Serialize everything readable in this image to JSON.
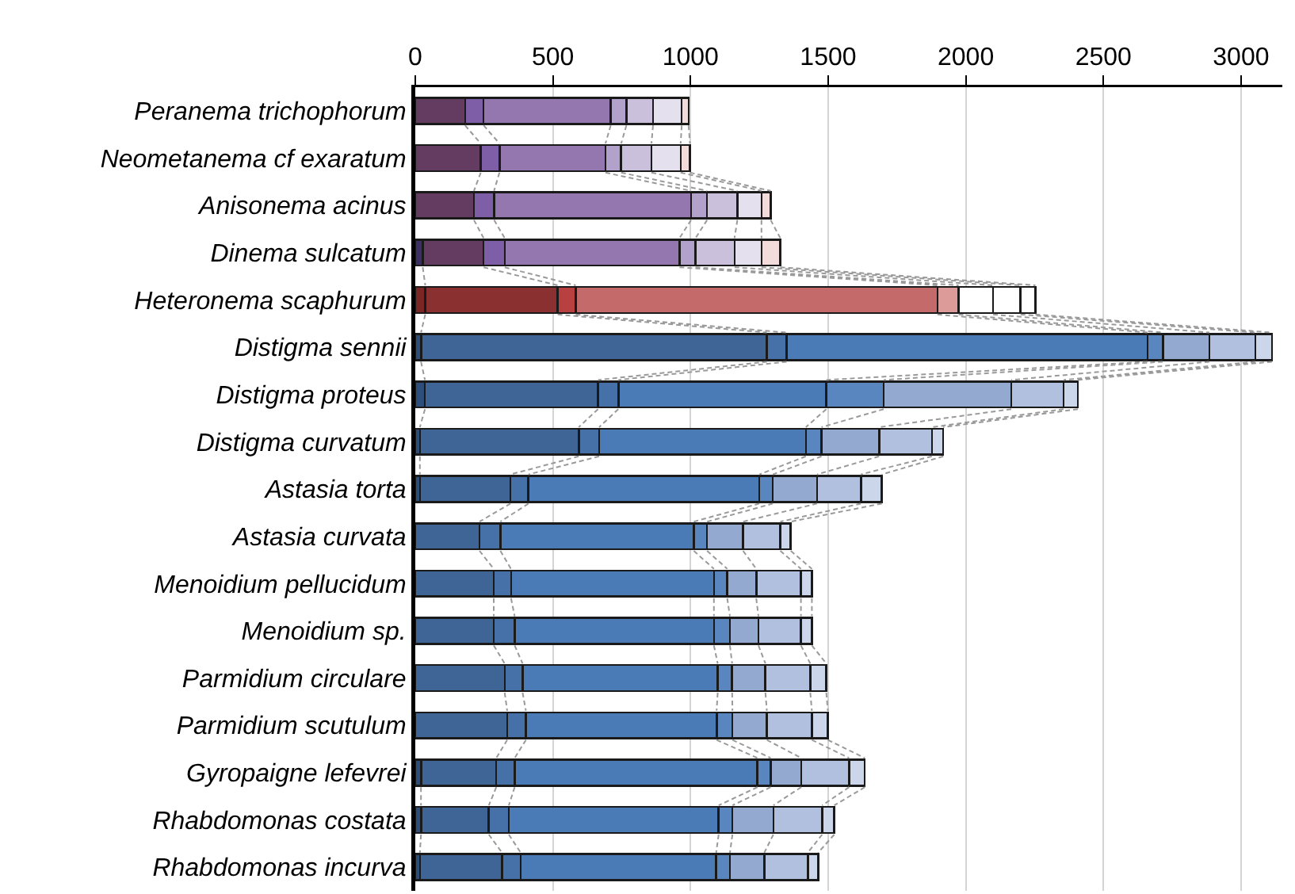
{
  "chart_data": {
    "type": "bar",
    "orientation": "horizontal",
    "stacked": true,
    "grid": "x",
    "categories": [
      "Peranema trichophorum",
      "Neometanema cf exaratum",
      "Anisonema acinus",
      "Dinema sulcatum",
      "Heteronema scaphurum",
      "Distigma sennii",
      "Distigma proteus",
      "Distigma curvatum",
      "Astasia torta",
      "Astasia curvata",
      "Menoidium pellucidum",
      "Menoidium sp.",
      "Parmidium circulare",
      "Parmidium scutulum",
      "Gyropaigne lefevrei",
      "Rhabdomonas costata",
      "Rhabdomonas incurva"
    ],
    "xlim": [
      0,
      3150
    ],
    "xticks": [
      0,
      500,
      1000,
      1500,
      2000,
      2500,
      3000
    ],
    "series": [
      {
        "values": [
          0,
          0,
          0,
          27,
          36,
          21,
          35,
          17,
          17,
          0,
          0,
          0,
          0,
          0,
          21,
          21,
          17
        ],
        "colors": [
          "#3b2f63",
          "#3b2f63",
          "#3b2f63",
          "#3b2f63",
          "#7b2525",
          "#2d4d7a",
          "#2d4d7a",
          "#2d4d7a",
          "#2d4d7a",
          "#2d4d7a",
          "#2d4d7a",
          "#2d4d7a",
          "#2d4d7a",
          "#2d4d7a",
          "#2d4d7a",
          "#2d4d7a",
          "#2d4d7a"
        ]
      },
      {
        "values": [
          181,
          238,
          213,
          221,
          481,
          1256,
          629,
          577,
          329,
          233,
          285,
          285,
          325,
          334,
          273,
          246,
          298
        ],
        "colors": [
          "#643c62",
          "#643c62",
          "#643c62",
          "#643c62",
          "#8b3030",
          "#3f6596",
          "#3f6596",
          "#3f6596",
          "#3f6596",
          "#3f6596",
          "#3f6596",
          "#3f6596",
          "#3f6596",
          "#3f6596",
          "#3f6596",
          "#3f6596",
          "#3f6596"
        ]
      },
      {
        "values": [
          67,
          68,
          73,
          77,
          66,
          72,
          74,
          74,
          65,
          76,
          63,
          76,
          65,
          68,
          67,
          73,
          68
        ],
        "colors": [
          "#7f5ea8",
          "#7f5ea8",
          "#7f5ea8",
          "#7f5ea8",
          "#b84040",
          "#4670a8",
          "#4670a8",
          "#4670a8",
          "#4670a8",
          "#4670a8",
          "#4670a8",
          "#4670a8",
          "#4670a8",
          "#4670a8",
          "#4670a8",
          "#4670a8",
          "#4670a8"
        ]
      },
      {
        "values": [
          462,
          385,
          716,
          635,
          1314,
          1311,
          755,
          751,
          839,
          703,
          737,
          724,
          709,
          693,
          882,
          762,
          710
        ],
        "colors": [
          "#9577b0",
          "#9577b0",
          "#9577b0",
          "#9577b0",
          "#c46a6a",
          "#4a7bb7",
          "#4a7bb7",
          "#4a7bb7",
          "#4a7bb7",
          "#4a7bb7",
          "#4a7bb7",
          "#4a7bb7",
          "#4a7bb7",
          "#4a7bb7",
          "#4a7bb7",
          "#4a7bb7",
          "#4a7bb7"
        ]
      },
      {
        "values": [
          57,
          57,
          58,
          58,
          77,
          56,
          209,
          57,
          49,
          48,
          48,
          58,
          52,
          57,
          48,
          50,
          50
        ],
        "colors": [
          "#b2a2cb",
          "#b2a2cb",
          "#b2a2cb",
          "#b2a2cb",
          "#dc9a98",
          "#5a86c0",
          "#5a86c0",
          "#5a86c0",
          "#5a86c0",
          "#5a86c0",
          "#5a86c0",
          "#5a86c0",
          "#5a86c0",
          "#5a86c0",
          "#5a86c0",
          "#5a86c0",
          "#5a86c0"
        ]
      },
      {
        "values": [
          97,
          110,
          110,
          142,
          125,
          169,
          463,
          209,
          161,
          131,
          106,
          104,
          121,
          125,
          111,
          149,
          125
        ],
        "colors": [
          "#cbc0dc",
          "#cbc0dc",
          "#cbc0dc",
          "#cbc0dc",
          "#ffffff",
          "#93a9d0",
          "#93a9d0",
          "#93a9d0",
          "#93a9d0",
          "#93a9d0",
          "#93a9d0",
          "#93a9d0",
          "#93a9d0",
          "#93a9d0",
          "#93a9d0",
          "#93a9d0",
          "#93a9d0"
        ]
      },
      {
        "values": [
          104,
          106,
          88,
          98,
          100,
          167,
          190,
          192,
          159,
          135,
          162,
          154,
          163,
          164,
          174,
          177,
          158
        ],
        "colors": [
          "#e4e0ee",
          "#e4e0ee",
          "#e4e0ee",
          "#e4e0ee",
          "#ffffff",
          "#b0c0de",
          "#b0c0de",
          "#b0c0de",
          "#b0c0de",
          "#b0c0de",
          "#b0c0de",
          "#b0c0de",
          "#b0c0de",
          "#b0c0de",
          "#b0c0de",
          "#b0c0de",
          "#b0c0de"
        ]
      },
      {
        "values": [
          25,
          34,
          33,
          68,
          54,
          60,
          52,
          41,
          76,
          38,
          40,
          40,
          58,
          58,
          57,
          44,
          38
        ],
        "colors": [
          "#f2dcdb",
          "#f2dcdb",
          "#f2dcdb",
          "#f2dcdb",
          "#ffffff",
          "#ccd6ea",
          "#ccd6ea",
          "#ccd6ea",
          "#ccd6ea",
          "#ccd6ea",
          "#ccd6ea",
          "#ccd6ea",
          "#ccd6ea",
          "#ccd6ea",
          "#ccd6ea",
          "#ccd6ea",
          "#ccd6ea"
        ]
      }
    ]
  }
}
